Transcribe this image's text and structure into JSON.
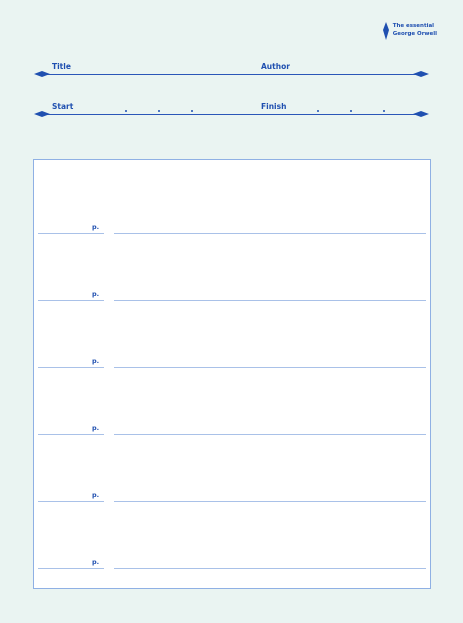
{
  "brand": {
    "line1": "The essential",
    "line2": "George Orwell",
    "icon": "feather-icon"
  },
  "fields": {
    "title_label": "Title",
    "author_label": "Author",
    "start_label": "Start",
    "finish_label": "Finish",
    "date_separator": "."
  },
  "notes": {
    "rows": [
      {
        "page_label": "p."
      },
      {
        "page_label": "p."
      },
      {
        "page_label": "p."
      },
      {
        "page_label": "p."
      },
      {
        "page_label": "p."
      },
      {
        "page_label": "p."
      }
    ]
  },
  "colors": {
    "background": "#eaf4f2",
    "ink": "#1f4fb0",
    "box_border": "#8fb0e4",
    "line": "#a9c1e8"
  }
}
